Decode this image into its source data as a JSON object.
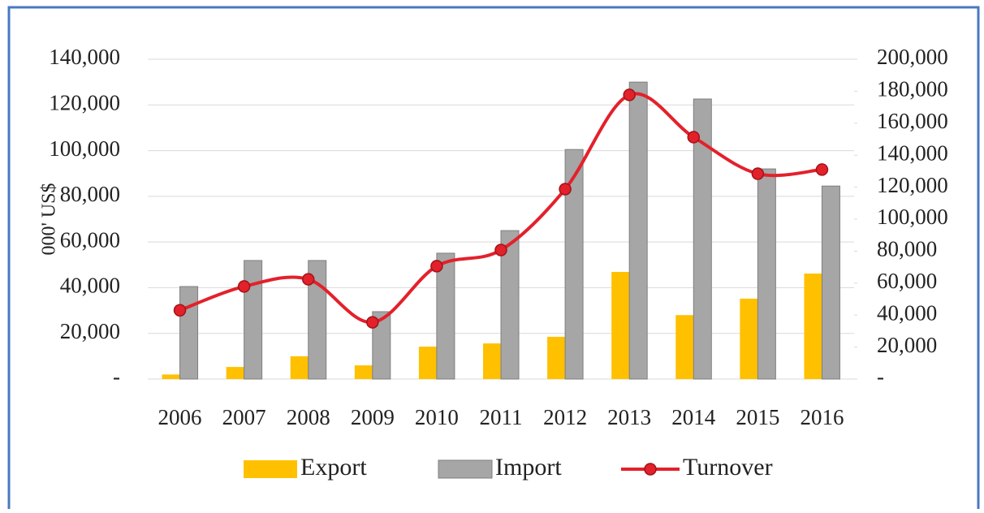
{
  "chart_data": {
    "type": "bar",
    "y_label": "000' US$",
    "categories": [
      "2006",
      "2007",
      "2008",
      "2009",
      "2010",
      "2011",
      "2012",
      "2013",
      "2014",
      "2015",
      "2016"
    ],
    "series": [
      {
        "name": "Export",
        "color": "#FFC000",
        "values": [
          2000,
          5300,
          10000,
          6000,
          14200,
          15600,
          18500,
          46900,
          28000,
          35200,
          46200
        ]
      },
      {
        "name": "Import",
        "color": "#A6A6A6",
        "values": [
          40500,
          51900,
          51900,
          29500,
          55100,
          65000,
          100500,
          130000,
          122600,
          92000,
          84500
        ]
      },
      {
        "name": "Turnover",
        "color": "#E3212B",
        "type": "line",
        "axis": "y2",
        "values": [
          43000,
          57900,
          62400,
          35500,
          70600,
          80700,
          118800,
          177700,
          151300,
          128400,
          131000
        ]
      }
    ],
    "ylim": [
      0,
      140000
    ],
    "yticks": [
      {
        "value": 0,
        "label": "-"
      },
      {
        "value": 20000,
        "label": "20,000"
      },
      {
        "value": 40000,
        "label": "40,000"
      },
      {
        "value": 60000,
        "label": "60,000"
      },
      {
        "value": 80000,
        "label": "80,000"
      },
      {
        "value": 100000,
        "label": "100,000"
      },
      {
        "value": 120000,
        "label": "120,000"
      },
      {
        "value": 140000,
        "label": "140,000"
      }
    ],
    "y2lim": [
      0,
      200000
    ],
    "y2ticks": [
      {
        "value": 0,
        "label": "-"
      },
      {
        "value": 20000,
        "label": "20,000"
      },
      {
        "value": 40000,
        "label": "40,000"
      },
      {
        "value": 60000,
        "label": "60,000"
      },
      {
        "value": 80000,
        "label": "80,000"
      },
      {
        "value": 100000,
        "label": "100,000"
      },
      {
        "value": 120000,
        "label": "120,000"
      },
      {
        "value": 140000,
        "label": "140,000"
      },
      {
        "value": 160000,
        "label": "160,000"
      },
      {
        "value": 180000,
        "label": "180,000"
      },
      {
        "value": 200000,
        "label": "200,000"
      }
    ],
    "grid": true,
    "legend": "bottom"
  }
}
